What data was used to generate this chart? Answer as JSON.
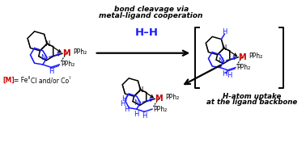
{
  "bg": "#ffffff",
  "black": "#000000",
  "blue": "#1a1aff",
  "red": "#cc0000",
  "dark_gray": "#222222",
  "top_text1": "bond cleavage via",
  "top_text2": "metal-ligand cooperation",
  "hh_label": "H–H",
  "bottom_text1": "H-atom uptake",
  "bottom_text2": "at the ligand backbone",
  "metal_eq": "[M] = Fe",
  "metal_sup1": "II",
  "metal_eq2": "Cl and/or Co",
  "metal_sup2": "I"
}
